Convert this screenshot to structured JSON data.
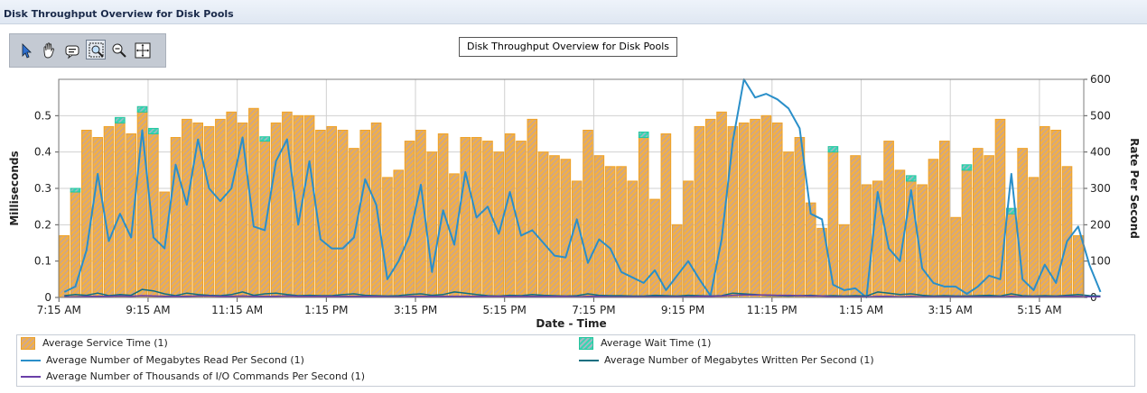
{
  "window": {
    "title": "Disk Throughput Overview for Disk Pools"
  },
  "toolbar": {
    "tools": [
      {
        "name": "select-tool-icon",
        "selected": false
      },
      {
        "name": "pan-hand-icon",
        "selected": false
      },
      {
        "name": "annotate-tool-icon",
        "selected": false
      },
      {
        "name": "zoom-box-icon",
        "selected": true
      },
      {
        "name": "zoom-out-icon",
        "selected": false
      },
      {
        "name": "crosshair-icon",
        "selected": false
      }
    ]
  },
  "tooltip": {
    "text": "Disk Throughput Overview for Disk Pools"
  },
  "legend": {
    "items": [
      {
        "label": "Average Service Time (1)",
        "kind": "bar",
        "color": "#f4b042"
      },
      {
        "label": "Average Wait Time (1)",
        "kind": "bar",
        "color": "#35d6b2"
      },
      {
        "label": "Average Number of Megabytes Read Per Second (1)",
        "kind": "line",
        "color": "#2a8fc9"
      },
      {
        "label": "Average Number of Megabytes Written Per Second (1)",
        "kind": "line",
        "color": "#0f6e80"
      },
      {
        "label": "Average Number of Thousands of I/O Commands Per Second (1)",
        "kind": "line",
        "color": "#6a3fa8"
      }
    ]
  },
  "chart_data": {
    "type": "bar",
    "title": "Disk Throughput Overview for Disk Pools",
    "xlabel": "Date - Time",
    "ylabel": "Milliseconds",
    "y2label": "Rate Per Second",
    "ylim": [
      0,
      0.6
    ],
    "y2lim": [
      0,
      600
    ],
    "yticks": [
      "0",
      "0.1",
      "0.2",
      "0.3",
      "0.4",
      "0.5"
    ],
    "y2ticks": [
      "0",
      "100",
      "200",
      "300",
      "400",
      "500",
      "600"
    ],
    "xticks": [
      "7:15 AM",
      "9:15 AM",
      "11:15 AM",
      "1:15 PM",
      "3:15 PM",
      "5:15 PM",
      "7:15 PM",
      "9:15 PM",
      "11:15 PM",
      "1:15 AM",
      "3:15 AM",
      "5:15 AM"
    ],
    "grid": true,
    "legend_position": "bottom",
    "series": [
      {
        "name": "Average Service Time (1)",
        "axis": "left",
        "values": [
          0.17,
          0.29,
          0.46,
          0.44,
          0.47,
          0.48,
          0.45,
          0.51,
          0.45,
          0.29,
          0.44,
          0.49,
          0.48,
          0.47,
          0.49,
          0.51,
          0.48,
          0.52,
          0.43,
          0.48,
          0.51,
          0.5,
          0.5,
          0.46,
          0.47,
          0.46,
          0.41,
          0.46,
          0.48,
          0.33,
          0.35,
          0.43,
          0.46,
          0.4,
          0.45,
          0.34,
          0.44,
          0.44,
          0.43,
          0.4,
          0.45,
          0.43,
          0.49,
          0.4,
          0.39,
          0.38,
          0.32,
          0.46,
          0.39,
          0.36,
          0.36,
          0.32,
          0.44,
          0.27,
          0.45,
          0.2,
          0.32,
          0.47,
          0.49,
          0.51,
          0.47,
          0.48,
          0.49,
          0.5,
          0.48,
          0.4,
          0.44,
          0.26,
          0.19,
          0.4,
          0.2,
          0.39,
          0.31,
          0.32,
          0.43,
          0.35,
          0.32,
          0.31,
          0.38,
          0.43,
          0.22,
          0.35,
          0.41,
          0.39,
          0.49,
          0.23,
          0.41,
          0.33,
          0.47,
          0.46,
          0.36,
          0.17
        ]
      },
      {
        "name": "Average Wait Time (1)",
        "axis": "left",
        "values": [
          0,
          0.01,
          0,
          0,
          0,
          0.015,
          0,
          0.015,
          0.015,
          0,
          0,
          0,
          0,
          0,
          0,
          0,
          0,
          0,
          0.012,
          0,
          0,
          0,
          0,
          0,
          0,
          0,
          0,
          0,
          0,
          0,
          0,
          0,
          0,
          0,
          0,
          0,
          0,
          0,
          0,
          0,
          0,
          0,
          0,
          0,
          0,
          0,
          0,
          0,
          0,
          0,
          0,
          0,
          0.015,
          0,
          0,
          0,
          0,
          0,
          0,
          0,
          0,
          0,
          0,
          0,
          0,
          0,
          0,
          0,
          0,
          0.015,
          0,
          0,
          0,
          0,
          0,
          0,
          0.015,
          0,
          0,
          0,
          0,
          0.015,
          0,
          0,
          0,
          0.015,
          0,
          0,
          0,
          0,
          0,
          0
        ]
      },
      {
        "name": "Average Number of Megabytes Read Per Second (1)",
        "axis": "right",
        "values": [
          15,
          30,
          130,
          340,
          155,
          230,
          165,
          460,
          165,
          135,
          365,
          255,
          435,
          300,
          265,
          300,
          440,
          195,
          185,
          375,
          435,
          200,
          375,
          160,
          135,
          135,
          165,
          325,
          255,
          50,
          100,
          170,
          310,
          70,
          240,
          145,
          345,
          220,
          250,
          175,
          290,
          170,
          185,
          150,
          115,
          110,
          215,
          95,
          160,
          135,
          70,
          55,
          40,
          75,
          20,
          60,
          100,
          50,
          5,
          160,
          430,
          600,
          550,
          560,
          545,
          520,
          465,
          230,
          215,
          35,
          20,
          25,
          0,
          290,
          135,
          100,
          295,
          80,
          40,
          30,
          30,
          10,
          30,
          60,
          50,
          340,
          50,
          20,
          90,
          40,
          155,
          195,
          90,
          15
        ]
      },
      {
        "name": "Average Number of Megabytes Written Per Second (1)",
        "axis": "right",
        "values": [
          5,
          8,
          6,
          12,
          5,
          8,
          6,
          22,
          18,
          10,
          5,
          12,
          8,
          6,
          5,
          8,
          15,
          6,
          10,
          12,
          8,
          5,
          6,
          5,
          5,
          8,
          10,
          6,
          5,
          4,
          5,
          8,
          10,
          6,
          8,
          15,
          12,
          8,
          5,
          4,
          6,
          5,
          8,
          6,
          5,
          4,
          5,
          10,
          6,
          5,
          5,
          4,
          4,
          6,
          5,
          4,
          6,
          5,
          4,
          5,
          12,
          10,
          8,
          6,
          5,
          4,
          5,
          6,
          4,
          5,
          4,
          5,
          4,
          15,
          12,
          8,
          10,
          6,
          4,
          5,
          4,
          4,
          5,
          6,
          4,
          10,
          5,
          4,
          5,
          4,
          6,
          8,
          5,
          4
        ]
      },
      {
        "name": "Average Number of Thousands of I/O Commands Per Second (1)",
        "axis": "right",
        "values": [
          2,
          2,
          3,
          3,
          3,
          4,
          3,
          5,
          4,
          3,
          3,
          3,
          4,
          4,
          3,
          3,
          4,
          3,
          3,
          3,
          4,
          3,
          3,
          3,
          3,
          3,
          3,
          3,
          3,
          2,
          2,
          3,
          3,
          3,
          3,
          3,
          3,
          3,
          3,
          3,
          3,
          3,
          3,
          3,
          3,
          3,
          2,
          3,
          3,
          2,
          2,
          2,
          2,
          2,
          2,
          2,
          2,
          3,
          3,
          4,
          6,
          7,
          7,
          7,
          6,
          6,
          5,
          4,
          4,
          2,
          2,
          2,
          2,
          3,
          3,
          2,
          3,
          2,
          2,
          2,
          2,
          2,
          2,
          2,
          2,
          3,
          2,
          2,
          2,
          2,
          3,
          3,
          2,
          2
        ]
      }
    ]
  }
}
